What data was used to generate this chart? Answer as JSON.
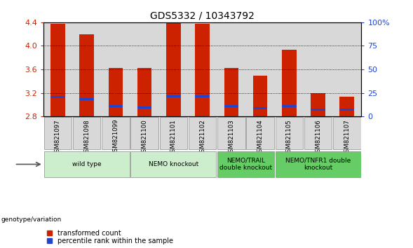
{
  "title": "GDS5332 / 10343792",
  "samples": [
    "GSM821097",
    "GSM821098",
    "GSM821099",
    "GSM821100",
    "GSM821101",
    "GSM821102",
    "GSM821103",
    "GSM821104",
    "GSM821105",
    "GSM821106",
    "GSM821107"
  ],
  "bar_tops": [
    4.38,
    4.19,
    3.62,
    3.62,
    4.39,
    4.37,
    3.62,
    3.49,
    3.93,
    3.19,
    3.13
  ],
  "bar_base": 2.8,
  "blue_positions": [
    3.13,
    3.09,
    2.97,
    2.95,
    3.14,
    3.14,
    2.97,
    2.94,
    2.97,
    2.91,
    2.91
  ],
  "ylim": [
    2.8,
    4.4
  ],
  "yticks": [
    2.8,
    3.2,
    3.6,
    4.0,
    4.4
  ],
  "right_yticks": [
    0,
    25,
    50,
    75,
    100
  ],
  "bar_color": "#cc2200",
  "blue_color": "#2244cc",
  "bar_width": 0.5,
  "groups": [
    {
      "label": "wild type",
      "indices": [
        0,
        1,
        2
      ],
      "color": "#cceecc"
    },
    {
      "label": "NEMO knockout",
      "indices": [
        3,
        4,
        5
      ],
      "color": "#cceecc"
    },
    {
      "label": "NEMO/TRAIL\ndouble knockout",
      "indices": [
        6,
        7
      ],
      "color": "#66cc66"
    },
    {
      "label": "NEMO/TNFR1 double\nknockout",
      "indices": [
        8,
        9,
        10
      ],
      "color": "#66cc66"
    }
  ],
  "legend_labels": [
    "transformed count",
    "percentile rank within the sample"
  ],
  "xlabel_left": "genotype/variation",
  "tick_label_color": "#cc2200",
  "right_tick_color": "#2244cc",
  "bg_sample_color": "#d8d8d8",
  "title_fontsize": 10
}
